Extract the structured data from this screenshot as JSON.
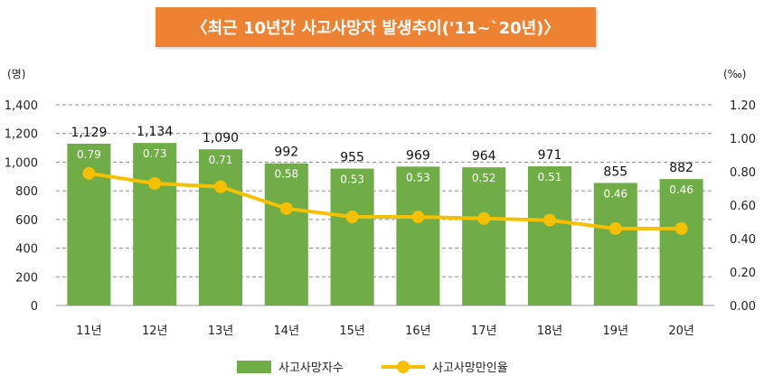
{
  "title": "〈최근 10년간 사고사망자 발생추이('11~`20년)〉",
  "left_unit": "(명)",
  "right_unit": "(‰)",
  "colors": {
    "bar": "#70ad47",
    "line": "#f5c000",
    "banner": "#ee8233"
  },
  "chart_data": {
    "type": "bar",
    "categories": [
      "11년",
      "12년",
      "13년",
      "14년",
      "15년",
      "16년",
      "17년",
      "18년",
      "19년",
      "20년"
    ],
    "series": [
      {
        "name": "사고사망자수",
        "type": "bar",
        "axis": "left",
        "values": [
          1129,
          1134,
          1090,
          992,
          955,
          969,
          964,
          971,
          855,
          882
        ],
        "labels": [
          "1,129",
          "1,134",
          "1,090",
          "992",
          "955",
          "969",
          "964",
          "971",
          "855",
          "882"
        ]
      },
      {
        "name": "사고사망만인율",
        "type": "line",
        "axis": "right",
        "values": [
          0.79,
          0.73,
          0.71,
          0.58,
          0.53,
          0.53,
          0.52,
          0.51,
          0.46,
          0.46
        ],
        "labels": [
          "0.79",
          "0.73",
          "0.71",
          "0.58",
          "0.53",
          "0.53",
          "0.52",
          "0.51",
          "0.46",
          "0.46"
        ]
      }
    ],
    "y_left": {
      "range": [
        0,
        1400
      ],
      "ticks": [
        "0",
        "200",
        "400",
        "600",
        "800",
        "1,000",
        "1,200",
        "1,400"
      ]
    },
    "y_right": {
      "range": [
        0,
        1.2
      ],
      "ticks": [
        "0.00",
        "0.20",
        "0.40",
        "0.60",
        "0.80",
        "1.00",
        "1.20"
      ]
    },
    "grid": "dashed",
    "legend": "bottom"
  }
}
